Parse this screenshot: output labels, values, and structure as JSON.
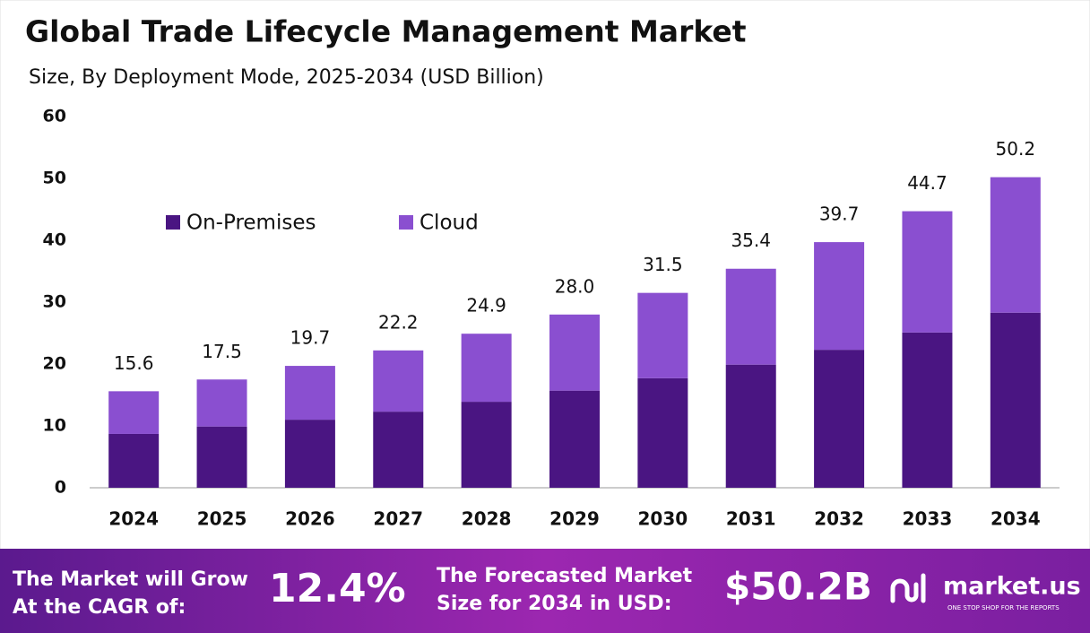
{
  "chart_data": {
    "type": "stacked_bar",
    "title": "Global Trade Lifecycle Management Market",
    "subtitle": "Size, By Deployment Mode, 2025-2034 (USD Billion)",
    "categories": [
      "2024",
      "2025",
      "2026",
      "2027",
      "2028",
      "2029",
      "2030",
      "2031",
      "2032",
      "2033",
      "2034"
    ],
    "series": [
      {
        "name": "On-Premises",
        "color": "#4a1582",
        "values": [
          8.7,
          9.9,
          11.0,
          12.3,
          13.9,
          15.7,
          17.7,
          19.9,
          22.3,
          25.1,
          28.3
        ]
      },
      {
        "name": "Cloud",
        "color": "#8a4fd0",
        "values": [
          6.9,
          7.6,
          8.7,
          9.9,
          11.0,
          12.3,
          13.8,
          15.5,
          17.4,
          19.6,
          21.9
        ]
      }
    ],
    "totals": [
      15.6,
      17.5,
      19.7,
      22.2,
      24.9,
      {
        "value": 28,
        "label": "28.0"
      },
      31.5,
      35.4,
      39.7,
      44.7,
      50.2
    ],
    "ylim": [
      0,
      60
    ],
    "yticks": [
      0,
      10,
      20,
      30,
      40,
      50,
      60
    ],
    "grid": false
  },
  "footer": {
    "cagr_text": [
      "The Market will Grow",
      "At the CAGR of:"
    ],
    "cagr_value": "12.4%",
    "forecast_text": [
      "The Forecasted Market",
      "Size for 2034 in USD:"
    ],
    "forecast_value": "$50.2B",
    "brand": "market.us",
    "tagline": "ONE STOP SHOP FOR THE REPORTS"
  }
}
